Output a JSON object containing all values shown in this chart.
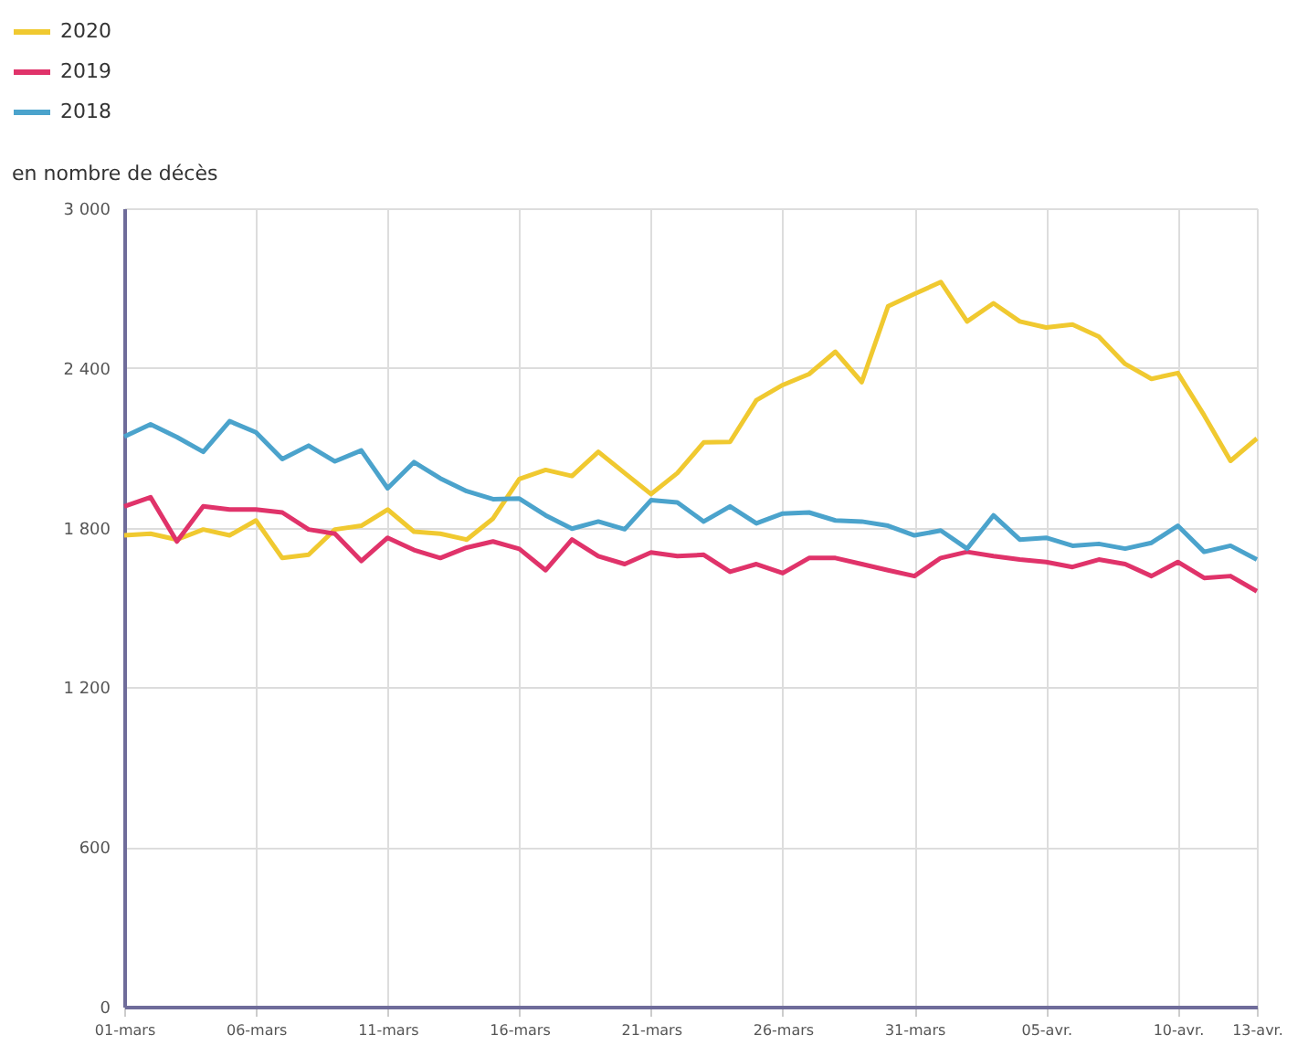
{
  "chart_data": {
    "type": "line",
    "ylabel": "en nombre de décès",
    "categories": [
      "01-mars",
      null,
      null,
      null,
      null,
      "06-mars",
      null,
      null,
      null,
      null,
      "11-mars",
      null,
      null,
      null,
      null,
      "16-mars",
      null,
      null,
      null,
      null,
      "21-mars",
      null,
      null,
      null,
      null,
      "26-mars",
      null,
      null,
      null,
      null,
      "31-mars",
      null,
      null,
      null,
      null,
      "05-avr.",
      null,
      null,
      null,
      null,
      "10-avr.",
      null,
      null,
      "13-avr."
    ],
    "series": [
      {
        "name": "2020",
        "color": "#f0c930",
        "values": [
          1771,
          1777,
          1755,
          1793,
          1771,
          1827,
          1686,
          1698,
          1793,
          1807,
          1868,
          1785,
          1777,
          1755,
          1834,
          1983,
          2017,
          1994,
          2085,
          2005,
          1926,
          2005,
          2120,
          2122,
          2279,
          2336,
          2377,
          2461,
          2347,
          2632,
          2678,
          2723,
          2575,
          2643,
          2575,
          2552,
          2563,
          2518,
          2415,
          2359,
          2381,
          2222,
          2051,
          2135
        ]
      },
      {
        "name": "2019",
        "color": "#e0336a",
        "values": [
          1880,
          1914,
          1748,
          1880,
          1868,
          1868,
          1857,
          1793,
          1777,
          1675,
          1762,
          1716,
          1686,
          1725,
          1748,
          1720,
          1640,
          1755,
          1693,
          1663,
          1707,
          1693,
          1698,
          1634,
          1663,
          1629,
          1686,
          1686,
          1663,
          1640,
          1618,
          1686,
          1709,
          1693,
          1680,
          1671,
          1652,
          1680,
          1663,
          1618,
          1671,
          1611,
          1618,
          1561
        ]
      },
      {
        "name": "2018",
        "color": "#4ba3cc",
        "values": [
          2142,
          2188,
          2140,
          2085,
          2200,
          2158,
          2058,
          2108,
          2049,
          2090,
          1948,
          2046,
          1985,
          1937,
          1907,
          1909,
          1846,
          1796,
          1823,
          1794,
          1903,
          1895,
          1823,
          1880,
          1816,
          1853,
          1857,
          1827,
          1823,
          1807,
          1771,
          1789,
          1721,
          1846,
          1755,
          1762,
          1732,
          1739,
          1721,
          1743,
          1807,
          1709,
          1732,
          1680
        ]
      }
    ],
    "ylim": [
      0,
      3000
    ],
    "yticks": [
      0,
      600,
      {
        "value": 1200,
        "label": "1 200"
      },
      {
        "value": 1800,
        "label": "1 800"
      },
      {
        "value": 2400,
        "label": "2 400"
      },
      {
        "value": 3000,
        "label": "3 000"
      }
    ],
    "grid": true,
    "legend": "top left",
    "line_style": "solid",
    "marker": "none"
  }
}
